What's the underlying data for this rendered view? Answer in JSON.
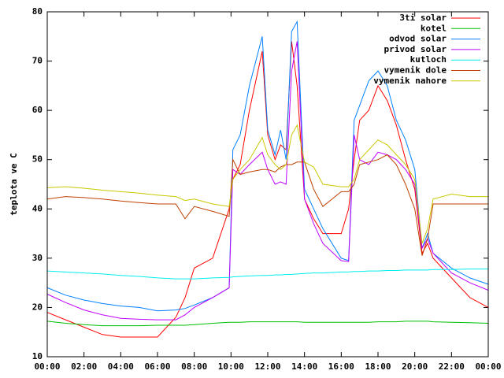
{
  "chart_data": {
    "type": "line",
    "y_label": "teplota ve C",
    "x": [
      0,
      1,
      2,
      3,
      4,
      5,
      6,
      7,
      7.5,
      8,
      9,
      9.9,
      10.1,
      10.5,
      11,
      11.7,
      12,
      12.4,
      12.7,
      13,
      13.3,
      13.6,
      14,
      14.5,
      15,
      16,
      16.4,
      16.7,
      17,
      17.5,
      18,
      18.5,
      19,
      19.5,
      20,
      20.4,
      20.7,
      21,
      22,
      23,
      24
    ],
    "xlim": [
      0,
      24
    ],
    "xticks": [
      {
        "value": 0,
        "label": "00:00"
      },
      {
        "value": 2,
        "label": "02:00"
      },
      {
        "value": 4,
        "label": "04:00"
      },
      {
        "value": 6,
        "label": "06:00"
      },
      {
        "value": 8,
        "label": "08:00"
      },
      {
        "value": 10,
        "label": "10:00"
      },
      {
        "value": 12,
        "label": "12:00"
      },
      {
        "value": 14,
        "label": "14:00"
      },
      {
        "value": 16,
        "label": "16:00"
      },
      {
        "value": 18,
        "label": "18:00"
      },
      {
        "value": 20,
        "label": "20:00"
      },
      {
        "value": 22,
        "label": "22:00"
      },
      {
        "value": 24,
        "label": "00:00"
      }
    ],
    "ylim": [
      10,
      80
    ],
    "yticks": [
      10,
      20,
      30,
      40,
      50,
      60,
      70,
      80
    ],
    "grid": false,
    "legend": "top-right",
    "series": [
      {
        "name": "3ti solar",
        "color": "#ff0000",
        "values": [
          19,
          17.5,
          16,
          14.5,
          14,
          14,
          14,
          18,
          22,
          28,
          30,
          40,
          46,
          49,
          60,
          72,
          55,
          50,
          53,
          52,
          74,
          65,
          42,
          38,
          35,
          35,
          40,
          50,
          58,
          60,
          65,
          62,
          57,
          50,
          44,
          31,
          33,
          30,
          26,
          22,
          20
        ]
      },
      {
        "name": "kotel",
        "color": "#00c000",
        "values": [
          17.2,
          16.8,
          16.5,
          16.3,
          16.3,
          16.3,
          16.4,
          16.4,
          16.4,
          16.5,
          16.8,
          17,
          17,
          17,
          17.1,
          17.1,
          17.1,
          17.1,
          17.1,
          17.1,
          17.1,
          17.1,
          17,
          17,
          17,
          17,
          17,
          17,
          17,
          17,
          17.1,
          17.1,
          17.1,
          17.2,
          17.2,
          17.2,
          17.2,
          17.1,
          17,
          16.9,
          16.8
        ]
      },
      {
        "name": "odvod solar",
        "color": "#0080ff",
        "values": [
          24,
          22.5,
          21.5,
          20.8,
          20.3,
          20,
          19.3,
          19.5,
          19.8,
          20.5,
          22,
          24,
          52,
          55,
          65,
          75,
          56,
          51,
          56,
          50,
          76,
          78,
          44,
          40,
          36,
          30,
          29.5,
          58,
          61,
          66,
          68,
          65,
          58,
          54,
          48,
          32,
          35,
          31,
          28,
          26,
          24.7
        ]
      },
      {
        "name": "privod solar",
        "color": "#c000ff",
        "values": [
          22.7,
          21,
          19.5,
          18.5,
          17.8,
          17.6,
          17.5,
          17.5,
          18.5,
          20,
          22,
          24,
          48,
          47,
          49,
          51.5,
          48,
          45,
          45.5,
          45,
          68,
          74,
          42,
          37,
          33,
          29.5,
          29.3,
          55,
          50,
          49,
          51.5,
          51,
          50,
          48,
          45,
          32,
          34,
          31,
          27,
          25,
          23.5
        ]
      },
      {
        "name": "kutloch",
        "color": "#00eeee",
        "values": [
          27.4,
          27.2,
          27,
          26.8,
          26.5,
          26.3,
          26,
          25.8,
          25.8,
          25.8,
          26,
          26.1,
          26.2,
          26.3,
          26.4,
          26.5,
          26.5,
          26.6,
          26.6,
          26.7,
          26.7,
          26.8,
          26.9,
          27,
          27,
          27.2,
          27.2,
          27.3,
          27.3,
          27.4,
          27.4,
          27.5,
          27.5,
          27.6,
          27.6,
          27.6,
          27.6,
          27.7,
          27.7,
          27.8,
          27.8
        ]
      },
      {
        "name": "vymenik dole",
        "color": "#c04000",
        "values": [
          42,
          42.5,
          42.3,
          42,
          41.6,
          41.3,
          41,
          41,
          38,
          40.5,
          39.5,
          38.5,
          50,
          47,
          47.5,
          48,
          48,
          47.5,
          48.5,
          49,
          49,
          49.5,
          49.5,
          44,
          40.5,
          43.5,
          43.5,
          45,
          49,
          49.5,
          50,
          51,
          49,
          45,
          40,
          30.5,
          34,
          41,
          41,
          41,
          41
        ]
      },
      {
        "name": "vymenik nahore",
        "color": "#c8c800",
        "values": [
          44.3,
          44.5,
          44.2,
          43.8,
          43.5,
          43.2,
          42.8,
          42.5,
          41.7,
          42,
          41,
          40.5,
          46,
          48,
          50,
          54.5,
          51,
          49,
          48,
          49,
          55,
          57,
          49.5,
          48.5,
          45,
          44.5,
          44.5,
          46,
          50,
          52,
          54,
          53,
          51,
          49,
          46,
          33,
          36,
          42,
          43,
          42.5,
          42.5
        ]
      }
    ]
  }
}
